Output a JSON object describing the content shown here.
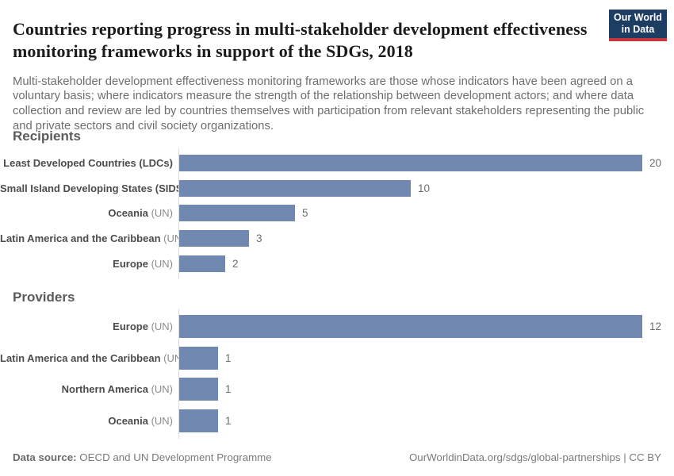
{
  "header": {
    "title": "Countries reporting progress in multi-stakeholder development effectiveness monitoring frameworks in support of the SDGs, 2018",
    "subtitle": "Multi-stakeholder development effectiveness monitoring frameworks are those whose indicators have been agreed on a voluntary basis; where indicators measure the strength of the relationship between development actors; and where data collection and review are led by countries themselves with participation from relevant stakeholders representing the public and private sectors and civil society organizations.",
    "logo": {
      "line1": "Our World",
      "line2": "in Data"
    }
  },
  "chart_data": [
    {
      "type": "bar",
      "orientation": "horizontal",
      "title": "Recipients",
      "categories": [
        "Least Developed Countries (LDCs)",
        "Small Island Developing States (SIDS)",
        "Oceania (UN)",
        "Latin America and the Caribbean (UN)",
        "Europe (UN)"
      ],
      "values": [
        20,
        10,
        5,
        3,
        2
      ],
      "xlim": [
        0,
        20
      ],
      "grid": false,
      "rows": [
        {
          "label": "Least Developed Countries (LDCs)",
          "suffix": "",
          "value": 20
        },
        {
          "label": "Small Island Developing States (SIDS)",
          "suffix": "",
          "value": 10
        },
        {
          "label": "Oceania",
          "suffix": " (UN)",
          "value": 5
        },
        {
          "label": "Latin America and the Caribbean",
          "suffix": " (UN)",
          "value": 3
        },
        {
          "label": "Europe",
          "suffix": " (UN)",
          "value": 2
        }
      ]
    },
    {
      "type": "bar",
      "orientation": "horizontal",
      "title": "Providers",
      "categories": [
        "Europe (UN)",
        "Latin America and the Caribbean (UN)",
        "Northern America (UN)",
        "Oceania (UN)"
      ],
      "values": [
        12,
        1,
        1,
        1
      ],
      "xlim": [
        0,
        12
      ],
      "grid": false,
      "rows": [
        {
          "label": "Europe",
          "suffix": " (UN)",
          "value": 12
        },
        {
          "label": "Latin America and the Caribbean",
          "suffix": " (UN)",
          "value": 1
        },
        {
          "label": "Northern America",
          "suffix": " (UN)",
          "value": 1
        },
        {
          "label": "Oceania",
          "suffix": " (UN)",
          "value": 1
        }
      ]
    }
  ],
  "footer": {
    "source_label": "Data source:",
    "source_value": " OECD and UN Development Programme",
    "attribution": "OurWorldinData.org/sdgs/global-partnerships | CC BY"
  },
  "colors": {
    "bar": "#7189b0",
    "axis_line": "#dcdcdc",
    "logo_background": "#1d3d63",
    "logo_stripe": "#c9353d"
  }
}
